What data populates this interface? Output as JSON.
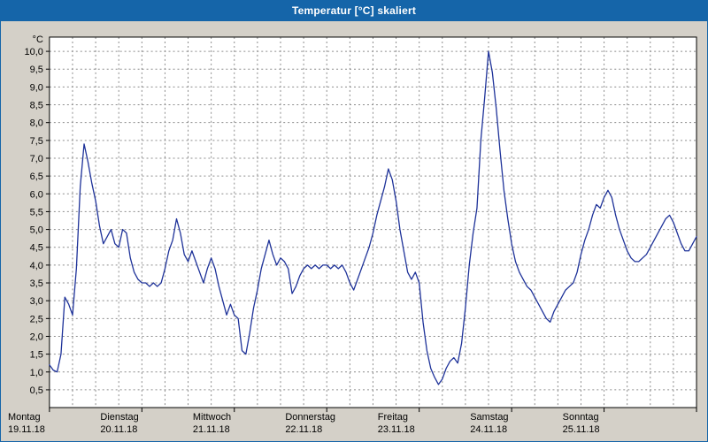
{
  "window": {
    "title": "Temperatur [°C] skaliert"
  },
  "colors": {
    "titlebar_bg": "#1565a9",
    "titlebar_text": "#ffffff",
    "window_bg": "#d4d0c8",
    "plot_bg": "#ffffff",
    "grid_color": "#8c8c8c",
    "axis_color": "#000000",
    "label_color": "#000000",
    "line_color": "#1e3299"
  },
  "chart_data": {
    "type": "line",
    "title": "Temperatur [°C] skaliert",
    "unit_label": "°C",
    "grid": true,
    "legend": "none",
    "y_axis": {
      "min_plot": 0,
      "max_plot": 10.4,
      "tick_labels_top_to_bottom": [
        "10,0",
        "9,5",
        "9,0",
        "8,5",
        "8,0",
        "7,5",
        "7,0",
        "6,5",
        "6,0",
        "5,5",
        "5,0",
        "4,5",
        "4,0",
        "3,5",
        "3,0",
        "2,5",
        "2,0",
        "1,5",
        "1,0",
        "0,5"
      ],
      "tick_values_top_to_bottom": [
        10,
        9.5,
        9,
        8.5,
        8,
        7.5,
        7,
        6.5,
        6,
        5.5,
        5,
        4.5,
        4,
        3.5,
        3,
        2.5,
        2,
        1.5,
        1,
        0.5
      ]
    },
    "x_axis": {
      "total_hours": 168,
      "minor_grid_hours": 6,
      "day_ticks": [
        {
          "name": "Montag",
          "date": "19.11.18"
        },
        {
          "name": "Dienstag",
          "date": "20.11.18"
        },
        {
          "name": "Mittwoch",
          "date": "21.11.18"
        },
        {
          "name": "Donnerstag",
          "date": "22.11.18"
        },
        {
          "name": "Freitag",
          "date": "23.11.18"
        },
        {
          "name": "Samstag",
          "date": "24.11.18"
        },
        {
          "name": "Sonntag",
          "date": "25.11.18"
        }
      ]
    },
    "series": [
      {
        "name": "Temperatur",
        "sample_interval_hours": 1,
        "values": [
          1.2,
          1.05,
          1.0,
          1.5,
          3.1,
          2.9,
          2.6,
          3.9,
          6.2,
          7.4,
          6.9,
          6.3,
          5.8,
          5.1,
          4.6,
          4.8,
          5.0,
          4.6,
          4.5,
          5.0,
          4.9,
          4.2,
          3.8,
          3.6,
          3.5,
          3.5,
          3.4,
          3.5,
          3.4,
          3.5,
          3.9,
          4.4,
          4.7,
          5.3,
          4.9,
          4.3,
          4.1,
          4.4,
          4.1,
          3.8,
          3.5,
          3.9,
          4.2,
          3.9,
          3.4,
          3.0,
          2.6,
          2.9,
          2.6,
          2.5,
          1.6,
          1.5,
          2.1,
          2.8,
          3.3,
          3.9,
          4.3,
          4.7,
          4.3,
          4.0,
          4.2,
          4.1,
          3.9,
          3.2,
          3.4,
          3.7,
          3.9,
          4.0,
          3.9,
          4.0,
          3.9,
          4.0,
          4.0,
          3.9,
          4.0,
          3.9,
          4.0,
          3.8,
          3.5,
          3.3,
          3.6,
          3.9,
          4.2,
          4.5,
          4.9,
          5.4,
          5.8,
          6.2,
          6.7,
          6.4,
          5.8,
          5.0,
          4.4,
          3.8,
          3.6,
          3.8,
          3.5,
          2.4,
          1.6,
          1.1,
          0.85,
          0.65,
          0.8,
          1.1,
          1.3,
          1.4,
          1.25,
          1.8,
          2.8,
          4.0,
          4.9,
          5.6,
          7.5,
          8.7,
          10.0,
          9.4,
          8.4,
          7.2,
          6.1,
          5.3,
          4.6,
          4.1,
          3.8,
          3.6,
          3.4,
          3.3,
          3.1,
          2.9,
          2.7,
          2.5,
          2.4,
          2.7,
          2.9,
          3.1,
          3.3,
          3.4,
          3.5,
          3.8,
          4.3,
          4.7,
          5.0,
          5.4,
          5.7,
          5.6,
          5.9,
          6.1,
          5.9,
          5.4,
          5.0,
          4.7,
          4.4,
          4.2,
          4.1,
          4.1,
          4.2,
          4.3,
          4.5,
          4.7,
          4.9,
          5.1,
          5.3,
          5.4,
          5.2,
          4.9,
          4.6,
          4.4,
          4.4,
          4.6,
          4.8
        ]
      }
    ]
  }
}
